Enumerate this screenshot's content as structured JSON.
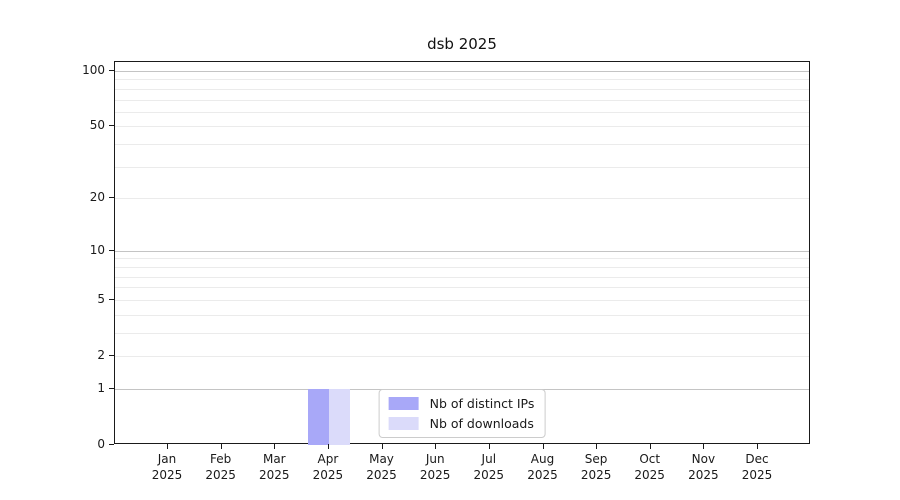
{
  "chart_data": {
    "type": "bar",
    "title": "dsb 2025",
    "x": {
      "categories": [
        "Jan",
        "Feb",
        "Mar",
        "Apr",
        "May",
        "Jun",
        "Jul",
        "Aug",
        "Sep",
        "Oct",
        "Nov",
        "Dec"
      ],
      "sub_label": "2025"
    },
    "y": {
      "scale": "log1p",
      "tick_values": [
        0,
        1,
        2,
        5,
        10,
        20,
        50,
        100
      ],
      "tick_labels": [
        "0",
        "1",
        "2",
        "5",
        "10",
        "20",
        "50",
        "100"
      ],
      "major_grid_values": [
        1,
        10,
        100
      ],
      "minor_grid_values": [
        2,
        3,
        4,
        5,
        6,
        7,
        8,
        9,
        20,
        30,
        40,
        50,
        60,
        70,
        80,
        90
      ],
      "axis_max_value": 112
    },
    "series": [
      {
        "name": "Nb of distinct IPs",
        "color": "#a8a8f8",
        "values": [
          0,
          0,
          0,
          1,
          0,
          0,
          0,
          0,
          0,
          0,
          0,
          0
        ]
      },
      {
        "name": "Nb of downloads",
        "color": "#dbdbfa",
        "values": [
          0,
          0,
          0,
          1,
          0,
          0,
          0,
          0,
          0,
          0,
          0,
          0
        ]
      }
    ],
    "legend": {
      "position": "lower center"
    }
  },
  "colors": {
    "background": "#ffffff",
    "spine": "#1a1a1a",
    "text": "#1a1a1a",
    "grid_major": "#c4c4c4",
    "grid_minor": "#ebebeb",
    "legend_border": "#cccccc"
  }
}
